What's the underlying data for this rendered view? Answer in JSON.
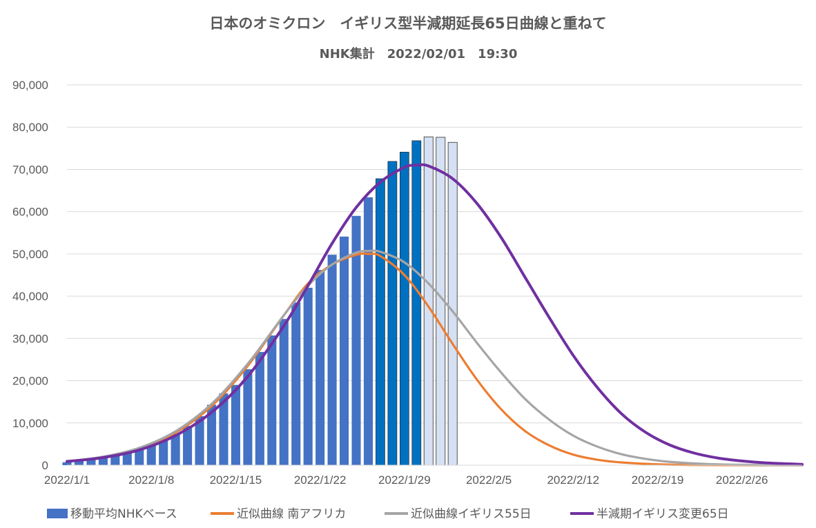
{
  "chart_data": {
    "type": "bar+line",
    "title": "日本のオミクロン　イギリス型半減期延長65日曲線と重ねて",
    "subtitle": "NHK集計　2022/02/01　19:30",
    "ylim": [
      0,
      90000
    ],
    "y_ticks": [
      "0",
      "10,000",
      "20,000",
      "30,000",
      "40,000",
      "50,000",
      "60,000",
      "70,000",
      "80,000",
      "90,000"
    ],
    "x_tick_labels": [
      "2022/1/1",
      "2022/1/8",
      "2022/1/15",
      "2022/1/22",
      "2022/1/29",
      "2022/2/5",
      "2022/2/12",
      "2022/2/19",
      "2022/2/26"
    ],
    "grid": true,
    "legend_position": "bottom",
    "bars": {
      "name": "移動平均NHKベース",
      "start_day": 1,
      "values": [
        700,
        1000,
        1300,
        1700,
        2200,
        2800,
        3600,
        4600,
        5900,
        7400,
        9300,
        11600,
        14300,
        17000,
        19000,
        22700,
        26800,
        30700,
        34600,
        38500,
        42000,
        46200,
        49800,
        54100,
        59000,
        63400,
        67800,
        71900,
        74100,
        76800,
        77700,
        77600,
        76400
      ],
      "colors": [
        "#4472c4",
        "#4472c4",
        "#4472c4",
        "#4472c4",
        "#4472c4",
        "#4472c4",
        "#4472c4",
        "#4472c4",
        "#4472c4",
        "#4472c4",
        "#4472c4",
        "#4472c4",
        "#4472c4",
        "#4472c4",
        "#4472c4",
        "#4472c4",
        "#4472c4",
        "#4472c4",
        "#4472c4",
        "#4472c4",
        "#4472c4",
        "#4472c4",
        "#4472c4",
        "#4472c4",
        "#4472c4",
        "#4472c4",
        "#0070c0",
        "#0070c0",
        "#0070c0",
        "#0070c0",
        "#d6e0f3",
        "#d6e0f3",
        "#d6e0f3"
      ]
    },
    "series": [
      {
        "name": "近似曲線 南アフリカ",
        "color": "#ed7d31",
        "x": [
          1,
          4,
          7,
          10,
          13,
          16,
          19,
          21,
          23,
          25,
          26,
          27,
          29,
          31,
          33,
          35,
          37,
          39,
          41,
          43,
          45,
          47,
          50,
          53,
          56,
          59,
          62
        ],
        "values": [
          900,
          1900,
          3900,
          7700,
          14000,
          23500,
          35500,
          43000,
          47500,
          49800,
          50000,
          49500,
          45000,
          37500,
          28700,
          20300,
          13300,
          8100,
          4700,
          2500,
          1300,
          650,
          200,
          50,
          10,
          0,
          0
        ]
      },
      {
        "name": "近似曲線イギリス55日",
        "color": "#a5a5a5",
        "x": [
          1,
          4,
          7,
          10,
          13,
          16,
          19,
          21,
          23,
          25,
          26,
          27,
          29,
          31,
          33,
          35,
          37,
          39,
          41,
          43,
          45,
          47,
          49,
          51,
          54,
          57,
          62
        ],
        "values": [
          900,
          2000,
          4100,
          8000,
          14500,
          24000,
          35500,
          42500,
          47500,
          50300,
          50700,
          50500,
          48000,
          43000,
          36400,
          29000,
          22000,
          15700,
          10800,
          7000,
          4400,
          2600,
          1500,
          800,
          300,
          100,
          0
        ]
      },
      {
        "name": "半減期イギリス変更65日",
        "color": "#7030a0",
        "x": [
          1,
          4,
          7,
          10,
          13,
          16,
          19,
          21,
          23,
          25,
          27,
          29,
          30,
          31,
          33,
          35,
          37,
          39,
          41,
          43,
          45,
          47,
          49,
          51,
          53,
          55,
          57,
          59,
          62
        ],
        "values": [
          900,
          1800,
          3600,
          7000,
          12500,
          21000,
          33000,
          42500,
          52500,
          61000,
          67000,
          70500,
          71000,
          70800,
          67800,
          62000,
          54000,
          44500,
          35000,
          26000,
          18400,
          12200,
          7800,
          4800,
          2900,
          1700,
          1000,
          550,
          200
        ]
      }
    ]
  }
}
